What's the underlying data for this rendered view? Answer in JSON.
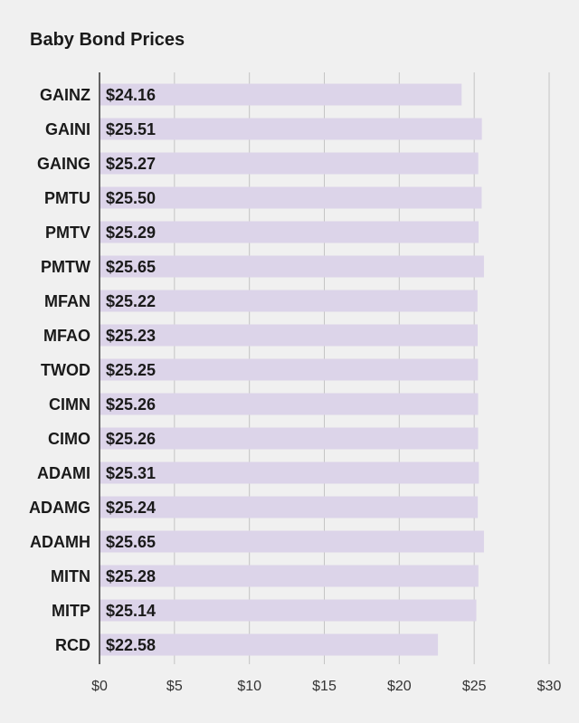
{
  "chart_data": {
    "type": "bar",
    "orientation": "horizontal",
    "title": "Baby Bond Prices",
    "xlabel": "",
    "ylabel": "",
    "categories": [
      "GAINZ",
      "GAINI",
      "GAING",
      "PMTU",
      "PMTV",
      "PMTW",
      "MFAN",
      "MFAO",
      "TWOD",
      "CIMN",
      "CIMO",
      "ADAMI",
      "ADAMG",
      "ADAMH",
      "MITN",
      "MITP",
      "RCD"
    ],
    "values": [
      24.16,
      25.51,
      25.27,
      25.5,
      25.29,
      25.65,
      25.22,
      25.23,
      25.25,
      25.26,
      25.26,
      25.31,
      25.24,
      25.65,
      25.28,
      25.14,
      22.58
    ],
    "value_labels": [
      "$24.16",
      "$25.51",
      "$25.27",
      "$25.50",
      "$25.29",
      "$25.65",
      "$25.22",
      "$25.23",
      "$25.25",
      "$25.26",
      "$25.26",
      "$25.31",
      "$25.24",
      "$25.65",
      "$25.28",
      "$25.14",
      "$22.58"
    ],
    "xlim": [
      0,
      30
    ],
    "xticks": [
      0,
      5,
      10,
      15,
      20,
      25,
      30
    ],
    "xtick_labels": [
      "$0",
      "$5",
      "$10",
      "$15",
      "$20",
      "$25",
      "$30"
    ],
    "grid": true,
    "legend": "none",
    "colors": {
      "bar": "#dcd4e9",
      "grid": "#c4c4c4",
      "axis": "#333333",
      "background": "#f0f0f0"
    }
  }
}
